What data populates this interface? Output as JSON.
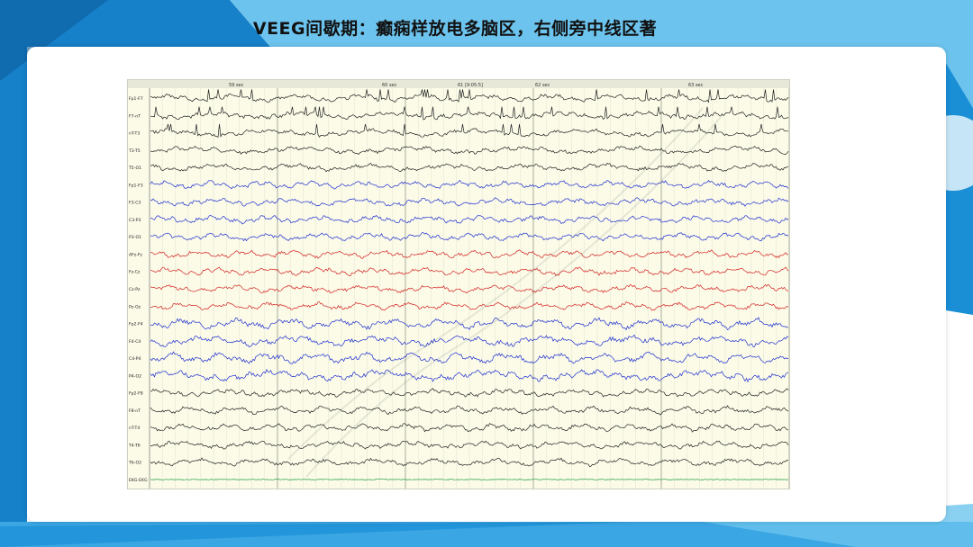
{
  "slide": {
    "title": "VEEG间歇期：癫痫样放电多脑区，右侧旁中线区著"
  },
  "colors": {
    "accent_blue": "#1a8fd6",
    "dark_blue": "#0f6fb5",
    "light_blue": "#55b9ec",
    "trace_black": "#222222",
    "trace_blue": "#1f2fcf",
    "trace_red": "#d42020",
    "trace_green": "#1a9a3a"
  },
  "eeg": {
    "header_left": "59 sec",
    "header_mid1": "60 sec",
    "header_center": "61 [9:05:5]",
    "header_mid2": "62 sec",
    "header_right": "63 sec",
    "channels": [
      {
        "label": "Fp1-F7",
        "color": "black"
      },
      {
        "label": "F7-nT",
        "color": "black"
      },
      {
        "label": "nT-T3",
        "color": "black"
      },
      {
        "label": "T3-T5",
        "color": "black"
      },
      {
        "label": "T5-O1",
        "color": "black"
      },
      {
        "label": "Fp1-F3",
        "color": "blue"
      },
      {
        "label": "F3-C3",
        "color": "blue"
      },
      {
        "label": "C3-P3",
        "color": "blue"
      },
      {
        "label": "P3-O1",
        "color": "blue"
      },
      {
        "label": "AFz-Fz",
        "color": "red"
      },
      {
        "label": "Fz-Cz",
        "color": "red"
      },
      {
        "label": "Cz-Pz",
        "color": "red"
      },
      {
        "label": "Pz-Oz",
        "color": "red"
      },
      {
        "label": "Fp2-F4",
        "color": "blue"
      },
      {
        "label": "F4-C4",
        "color": "blue"
      },
      {
        "label": "C4-P4",
        "color": "blue"
      },
      {
        "label": "P4-O2",
        "color": "blue"
      },
      {
        "label": "Fp2-F8",
        "color": "black"
      },
      {
        "label": "F8-nT",
        "color": "black"
      },
      {
        "label": "nT-T4",
        "color": "black"
      },
      {
        "label": "T4-T6",
        "color": "black"
      },
      {
        "label": "T6-O2",
        "color": "black"
      },
      {
        "label": "EKG-EKG",
        "color": "green"
      }
    ]
  }
}
